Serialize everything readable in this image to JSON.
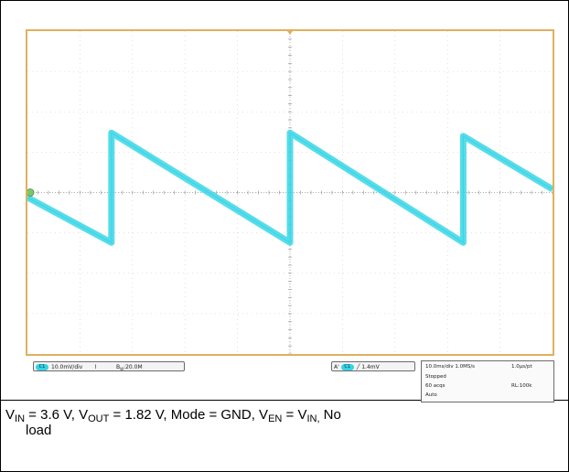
{
  "chart_data": {
    "type": "line",
    "title": "",
    "xlabel": "",
    "ylabel": "",
    "x_unit_per_div": "10.0ms/div",
    "y_unit_per_div": "10.0mV/div",
    "xlim": [
      0,
      100
    ],
    "ylim": [
      -50,
      50
    ],
    "grid": true,
    "divisions": {
      "x": 10,
      "y": 8
    },
    "series": [
      {
        "x": [
          0,
          16.0,
          16.0,
          50.0,
          50.0,
          83.0,
          83.0,
          100
        ],
        "y": [
          -1.5,
          -15.5,
          18.5,
          -15.5,
          18.5,
          -15.5,
          17.5,
          1.0
        ],
        "color": "#3ad6e6"
      }
    ],
    "markers": {
      "ground_level": 0,
      "trigger_position_x": 50
    }
  },
  "status_bar": {
    "ch1_label": "C1",
    "ch1_scale": "10.0mV/div",
    "bw_symbol": "⌇",
    "bw_value": "B",
    "bw_sub": "W",
    "bw_rest": ":20.0M",
    "trigger_prefix": "A'",
    "trigger_channel": "C1",
    "trigger_slope": "╱",
    "trigger_level": "1.4mV",
    "acq": {
      "timebase": "10.0ms/div 1.0MS/s",
      "sample": "1.0µs/pt",
      "state": "Stopped",
      "acqs": "60 acqs",
      "record": "RL:100k",
      "mode": "Auto"
    }
  },
  "caption": {
    "v_in": "V",
    "v_in_sub": "IN",
    "v_in_rest": " = 3.6 V, V",
    "v_out_sub": "OUT",
    "v_out_rest": " = 1.82 V, Mode = GND, V",
    "v_en_sub": "EN",
    "v_en_rest": " = V",
    "v_in2_sub": "IN,",
    "tail": " No",
    "line2": "load"
  },
  "colors": {
    "trace": "#3ad6e6",
    "frame": "#e1b05e",
    "grid": "#c8c8c8",
    "ground_marker": "#7bc86b"
  }
}
